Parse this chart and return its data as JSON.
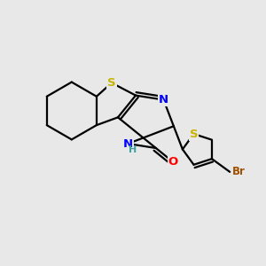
{
  "background_color": "#e8e8e8",
  "bond_color": "#000000",
  "bond_width": 1.6,
  "atom_colors": {
    "S": "#c8b400",
    "N": "#0000ff",
    "O": "#ff0000",
    "Br": "#a05000",
    "H": "#40a0a0",
    "C": "#000000"
  },
  "font_size": 8.5,
  "figsize": [
    3.0,
    3.0
  ],
  "dpi": 100
}
